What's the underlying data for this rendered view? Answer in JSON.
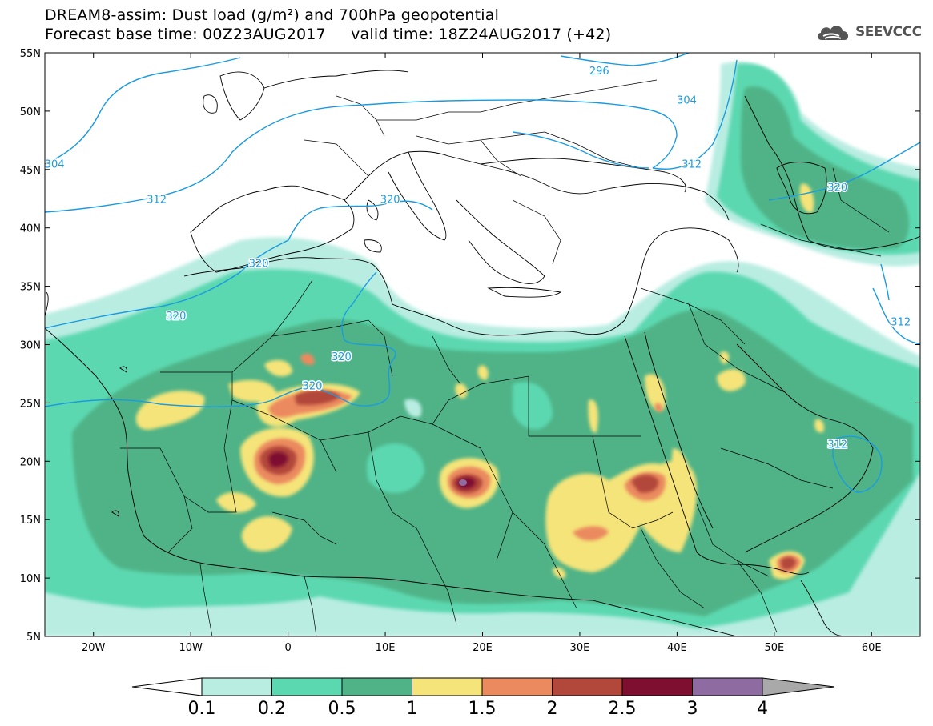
{
  "header": {
    "line1": "DREAM8-assim: Dust load (g/m²) and 700hPa geopotential",
    "line2": "Forecast base time: 00Z23AUG2017     valid time: 18Z24AUG2017 (+42)",
    "logo_text": "SEEVCCC",
    "logo_icon": "cloud-logo-icon"
  },
  "map": {
    "lon_range": [
      -25,
      65
    ],
    "lat_range": [
      5,
      55
    ],
    "lon_ticks": [
      {
        "value": -20,
        "label": "20W"
      },
      {
        "value": -10,
        "label": "10W"
      },
      {
        "value": 0,
        "label": "0"
      },
      {
        "value": 10,
        "label": "10E"
      },
      {
        "value": 20,
        "label": "20E"
      },
      {
        "value": 30,
        "label": "30E"
      },
      {
        "value": 40,
        "label": "40E"
      },
      {
        "value": 50,
        "label": "50E"
      },
      {
        "value": 60,
        "label": "60E"
      }
    ],
    "lat_ticks": [
      {
        "value": 55,
        "label": "55N"
      },
      {
        "value": 50,
        "label": "50N"
      },
      {
        "value": 45,
        "label": "45N"
      },
      {
        "value": 40,
        "label": "40N"
      },
      {
        "value": 35,
        "label": "35N"
      },
      {
        "value": 30,
        "label": "30N"
      },
      {
        "value": 25,
        "label": "25N"
      },
      {
        "value": 20,
        "label": "20N"
      },
      {
        "value": 15,
        "label": "15N"
      },
      {
        "value": 10,
        "label": "10N"
      },
      {
        "value": 5,
        "label": "5N"
      }
    ],
    "contour_labels": [
      {
        "text": "296",
        "lon": 32,
        "lat": 53.5
      },
      {
        "text": "304",
        "lon": 41,
        "lat": 51
      },
      {
        "text": "304",
        "lon": -24,
        "lat": 45.5
      },
      {
        "text": "312",
        "lon": -13.5,
        "lat": 42.5
      },
      {
        "text": "312",
        "lon": 41.5,
        "lat": 45.5
      },
      {
        "text": "312",
        "lon": 63,
        "lat": 32
      },
      {
        "text": "312",
        "lon": 56.5,
        "lat": 21.5
      },
      {
        "text": "320",
        "lon": 10.5,
        "lat": 42.5
      },
      {
        "text": "320",
        "lon": -3,
        "lat": 37
      },
      {
        "text": "320",
        "lon": -11.5,
        "lat": 32.5
      },
      {
        "text": "320",
        "lon": 56.5,
        "lat": 43.5
      },
      {
        "text": "320",
        "lon": 5.5,
        "lat": 29
      },
      {
        "text": "320",
        "lon": 2.5,
        "lat": 26.5
      }
    ],
    "colors": {
      "c01": "#b9ede2",
      "c02": "#5cd8b0",
      "c05": "#4fb387",
      "c1": "#f5e479",
      "c15": "#eb8a5e",
      "c2": "#b2473b",
      "c25": "#7e0f30",
      "c3": "#8e6ca2",
      "c4": "#a9a9a9",
      "contour": "#1a9be0"
    }
  },
  "colorbar": {
    "labels": [
      "0.1",
      "0.2",
      "0.5",
      "1",
      "1.5",
      "2",
      "2.5",
      "3",
      "4"
    ],
    "colors": [
      "#b9ede2",
      "#5cd8b0",
      "#4fb387",
      "#f5e479",
      "#eb8a5e",
      "#b2473b",
      "#7e0f30",
      "#8e6ca2",
      "#a9a9a9"
    ],
    "low_arrow_color": "#ffffff"
  }
}
